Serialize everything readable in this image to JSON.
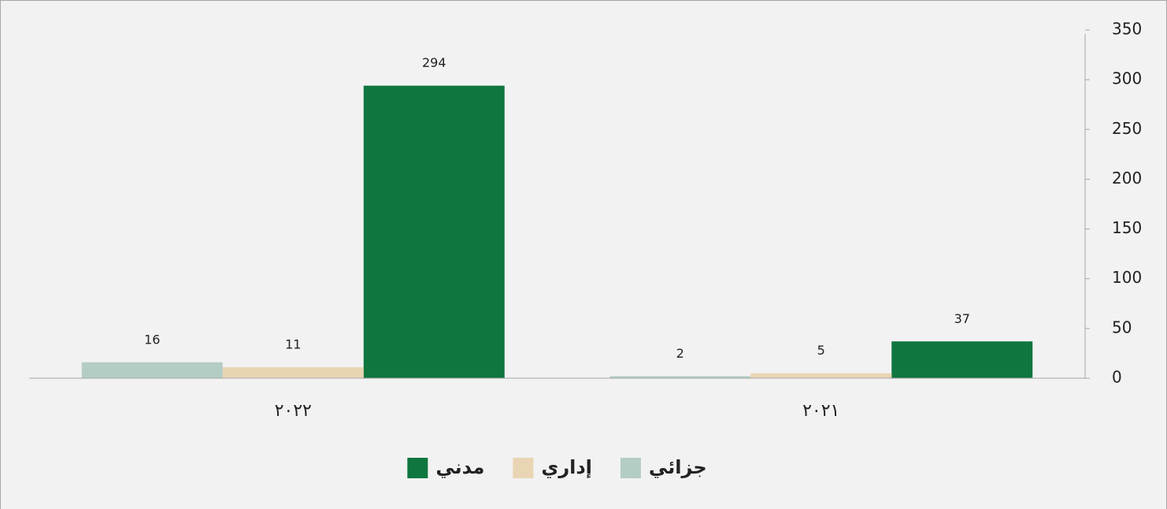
{
  "chart_data": {
    "type": "bar",
    "direction": "rtl",
    "categories": [
      "٢٠٢١",
      "٢٠٢٢"
    ],
    "series": [
      {
        "name": "مدني",
        "color": "#10763f",
        "values": [
          37,
          294
        ]
      },
      {
        "name": "إداري",
        "color": "#e9d5b3",
        "values": [
          5,
          11
        ]
      },
      {
        "name": "جزائي",
        "color": "#b3cdc4",
        "values": [
          2,
          16
        ]
      }
    ],
    "ylim": [
      0,
      350
    ],
    "yticks": [
      0,
      50,
      100,
      150,
      200,
      250,
      300,
      350
    ],
    "y_axis_side": "right",
    "legend": "bottom"
  }
}
